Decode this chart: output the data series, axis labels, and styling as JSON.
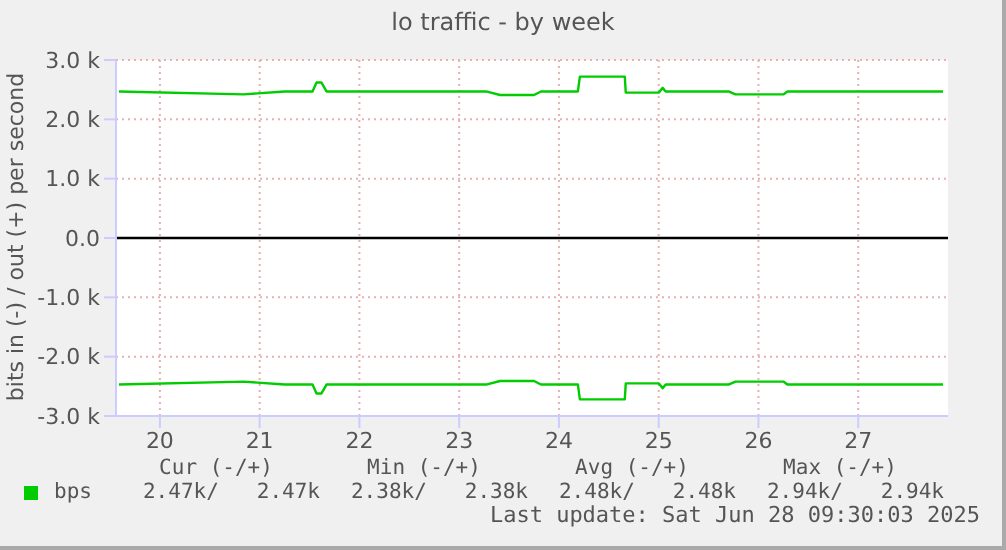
{
  "chart_data": {
    "type": "line",
    "title": "lo traffic - by week",
    "ylabel": "bits in (-) / out (+) per second",
    "x": [
      20.09,
      21.34,
      21.75,
      22.03,
      22.07,
      22.12,
      22.17,
      22.21,
      23.77,
      23.91,
      24.25,
      24.32,
      24.69,
      24.71,
      25.16,
      25.17,
      25.5,
      25.54,
      25.57,
      26.2,
      26.27,
      26.75,
      26.79,
      28.35
    ],
    "series": [
      {
        "name": "bps",
        "color": "#00cc00",
        "values": [
          2470,
          2420,
          2470,
          2470,
          2620,
          2620,
          2470,
          2470,
          2470,
          2410,
          2410,
          2470,
          2470,
          2720,
          2720,
          2450,
          2450,
          2530,
          2470,
          2470,
          2420,
          2420,
          2470,
          2470
        ]
      },
      {
        "color": "#00cc00",
        "values": [
          -2470,
          -2420,
          -2470,
          -2470,
          -2620,
          -2620,
          -2470,
          -2470,
          -2470,
          -2410,
          -2410,
          -2470,
          -2470,
          -2720,
          -2720,
          -2450,
          -2450,
          -2530,
          -2470,
          -2470,
          -2420,
          -2420,
          -2470,
          -2470
        ]
      }
    ],
    "xlim": [
      20.06,
      28.4
    ],
    "xticks": [
      {
        "value": 20.5,
        "label": "20"
      },
      {
        "value": 21.5,
        "label": "21"
      },
      {
        "value": 22.5,
        "label": "22"
      },
      {
        "value": 23.5,
        "label": "23"
      },
      {
        "value": 24.5,
        "label": "24"
      },
      {
        "value": 25.5,
        "label": "25"
      },
      {
        "value": 26.5,
        "label": "26"
      },
      {
        "value": 27.5,
        "label": "27"
      }
    ],
    "ylim": [
      -3000,
      3000
    ],
    "yticks": [
      {
        "value": -3000,
        "label": "-3.0 k"
      },
      {
        "value": -2000,
        "label": "-2.0 k"
      },
      {
        "value": -1000,
        "label": "-1.0 k"
      },
      {
        "value": 0,
        "label": "0.0"
      },
      {
        "value": 1000,
        "label": "1.0 k"
      },
      {
        "value": 2000,
        "label": "2.0 k"
      },
      {
        "value": 3000,
        "label": "3.0 k"
      }
    ],
    "grid": true,
    "legend": "bottom left",
    "marker": "none",
    "line_style": "solid",
    "ref_lines": [
      {
        "axis": "y",
        "value": 0,
        "color": "#000000"
      }
    ],
    "annotations": [
      "Cur (-/+)",
      "Min (-/+)",
      "Avg (-/+)",
      "Max (-/+)",
      "2.47k/   2.47k",
      "2.38k/   2.38k",
      "2.48k/   2.48k",
      "2.94k/   2.94k",
      "Last update: Sat Jun 28 09:30:03 2025"
    ]
  }
}
